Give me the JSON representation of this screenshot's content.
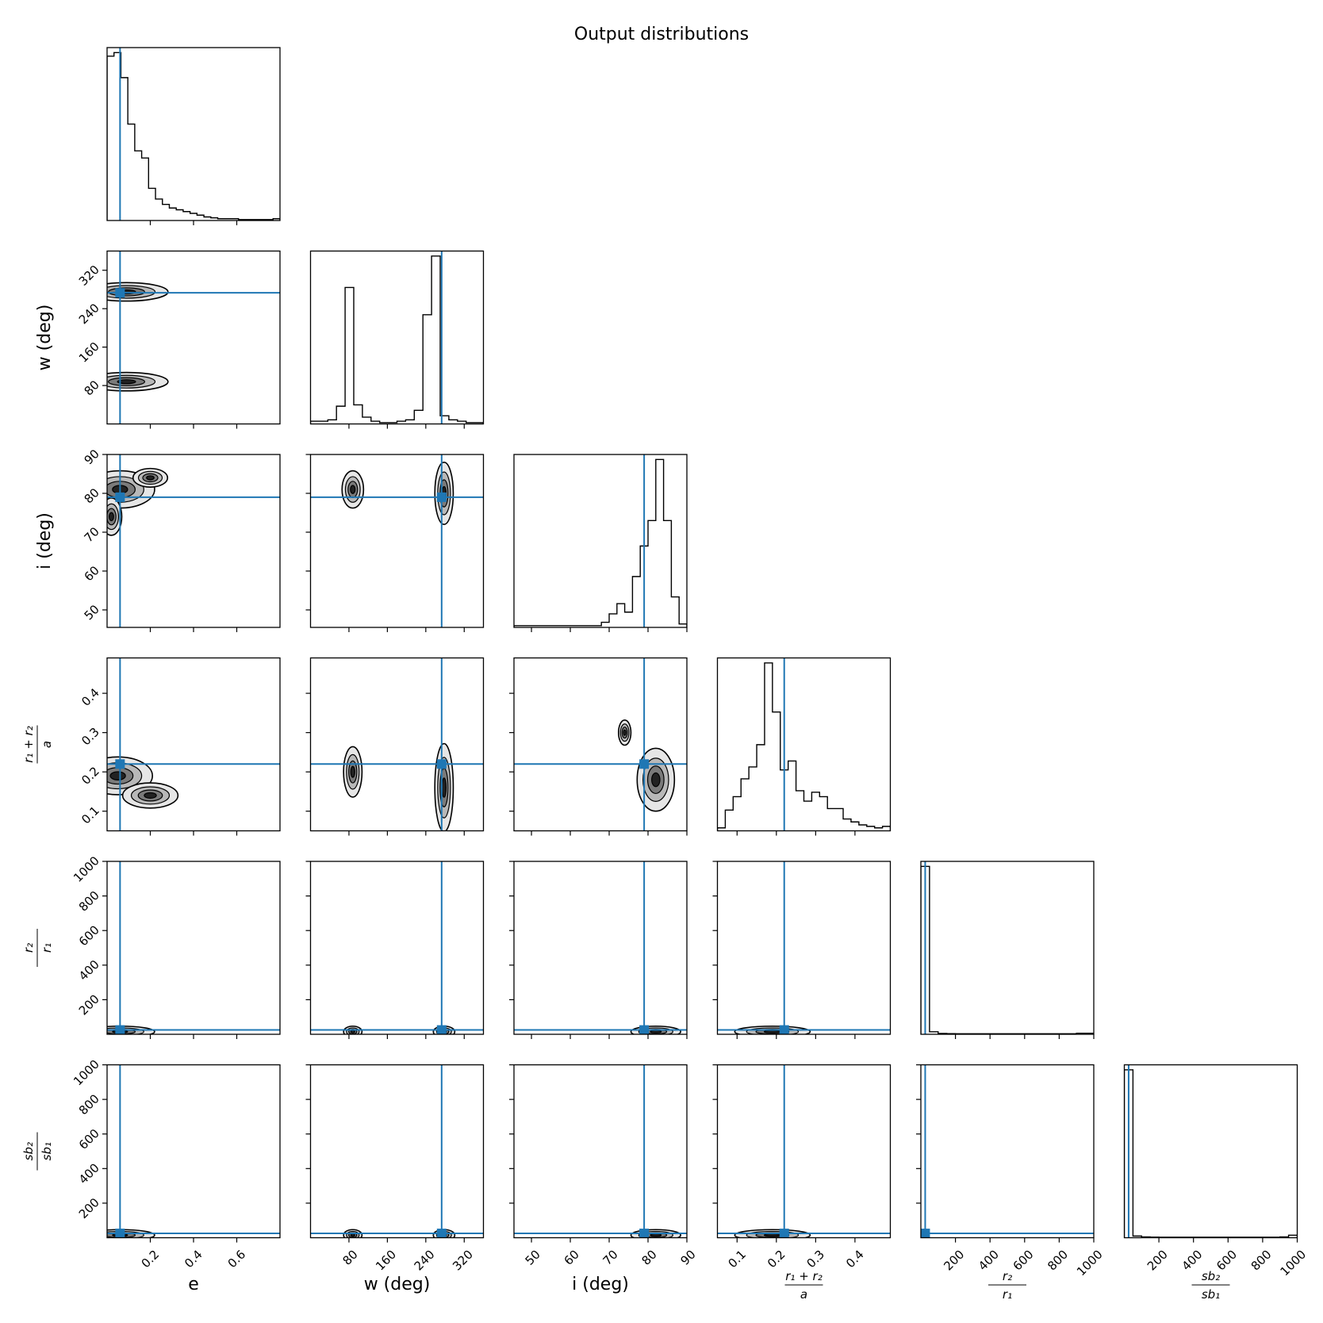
{
  "chart_data": {
    "type": "corner",
    "title": "Output distributions",
    "truth_color": "#1f77b4",
    "parameters": [
      {
        "id": "e",
        "label": "e",
        "label_kind": "text",
        "range": [
          0.0,
          0.8
        ],
        "ticks": [
          0.2,
          0.4,
          0.6
        ],
        "tick_labels": [
          "0.2",
          "0.4",
          "0.6"
        ],
        "truth": 0.06
      },
      {
        "id": "w",
        "label": "w (deg)",
        "label_kind": "text",
        "range": [
          0,
          360
        ],
        "ticks": [
          80,
          160,
          240,
          320
        ],
        "tick_labels": [
          "80",
          "160",
          "240",
          "320"
        ],
        "truth": 273
      },
      {
        "id": "i",
        "label": "i (deg)",
        "label_kind": "text",
        "range": [
          45.5,
          90
        ],
        "ticks": [
          50,
          60,
          70,
          80,
          90
        ],
        "tick_labels": [
          "50",
          "60",
          "70",
          "80",
          "90"
        ],
        "truth": 79
      },
      {
        "id": "rsum",
        "label_kind": "fraction",
        "label_num": "r₁ + r₂",
        "label_den": "a",
        "range": [
          0.05,
          0.49
        ],
        "ticks": [
          0.1,
          0.2,
          0.3,
          0.4
        ],
        "tick_labels": [
          "0.1",
          "0.2",
          "0.3",
          "0.4"
        ],
        "truth": 0.22
      },
      {
        "id": "rratio",
        "label_kind": "fraction",
        "label_num": "r₂",
        "label_den": "r₁",
        "range": [
          0,
          1000
        ],
        "ticks": [
          200,
          400,
          600,
          800,
          1000
        ],
        "tick_labels": [
          "200",
          "400",
          "600",
          "800",
          "1000"
        ],
        "truth": 25
      },
      {
        "id": "sbratio",
        "label_kind": "fraction",
        "label_num": "sb₂",
        "label_den": "sb₁",
        "range": [
          0,
          1000
        ],
        "ticks": [
          200,
          400,
          600,
          800,
          1000
        ],
        "tick_labels": [
          "200",
          "400",
          "600",
          "800",
          "1000"
        ],
        "truth": 25
      }
    ],
    "histograms": [
      {
        "param": "e",
        "bins": [
          0.0,
          0.032,
          0.064,
          0.096,
          0.128,
          0.16,
          0.192,
          0.224,
          0.256,
          0.288,
          0.32,
          0.352,
          0.384,
          0.416,
          0.448,
          0.48,
          0.512,
          0.544,
          0.576,
          0.608,
          0.64,
          0.672,
          0.704,
          0.736,
          0.768,
          0.8
        ],
        "counts": [
          0.92,
          0.94,
          0.8,
          0.54,
          0.39,
          0.35,
          0.18,
          0.12,
          0.09,
          0.07,
          0.06,
          0.05,
          0.04,
          0.03,
          0.02,
          0.015,
          0.01,
          0.01,
          0.01,
          0.005,
          0.005,
          0.005,
          0.005,
          0.005,
          0.01
        ]
      },
      {
        "param": "w",
        "bins": [
          0,
          36,
          54,
          72,
          90,
          108,
          126,
          144,
          162,
          180,
          198,
          216,
          234,
          252,
          270,
          288,
          306,
          324,
          360
        ],
        "counts": [
          0.02,
          0.03,
          0.13,
          1.0,
          0.14,
          0.05,
          0.02,
          0.01,
          0.01,
          0.02,
          0.03,
          0.1,
          0.8,
          1.23,
          0.06,
          0.03,
          0.02,
          0.01
        ]
      },
      {
        "param": "i",
        "bins": [
          45.5,
          68,
          70,
          72,
          74,
          76,
          78,
          80,
          82,
          84,
          86,
          88,
          90
        ],
        "counts": [
          0.01,
          0.03,
          0.08,
          0.14,
          0.09,
          0.3,
          0.48,
          0.63,
          0.99,
          0.63,
          0.18,
          0.02
        ]
      },
      {
        "param": "rsum",
        "bins": [
          0.05,
          0.07,
          0.09,
          0.11,
          0.13,
          0.15,
          0.17,
          0.19,
          0.21,
          0.23,
          0.25,
          0.27,
          0.29,
          0.31,
          0.33,
          0.35,
          0.37,
          0.39,
          0.41,
          0.43,
          0.45,
          0.47,
          0.49
        ],
        "counts": [
          0.02,
          0.14,
          0.23,
          0.35,
          0.43,
          0.58,
          1.13,
          0.8,
          0.41,
          0.47,
          0.27,
          0.2,
          0.26,
          0.23,
          0.15,
          0.15,
          0.08,
          0.06,
          0.04,
          0.03,
          0.02,
          0.03
        ]
      },
      {
        "param": "rratio",
        "bins": [
          0,
          50,
          100,
          150,
          200,
          300,
          400,
          500,
          600,
          700,
          800,
          900,
          1000
        ],
        "counts": [
          1.0,
          0.015,
          0.005,
          0.004,
          0.003,
          0.003,
          0.003,
          0.003,
          0.003,
          0.003,
          0.003,
          0.006
        ]
      },
      {
        "param": "sbratio",
        "bins": [
          0,
          50,
          100,
          150,
          200,
          300,
          400,
          500,
          600,
          700,
          800,
          900,
          950,
          1000
        ],
        "counts": [
          1.0,
          0.01,
          0.005,
          0.004,
          0.003,
          0.003,
          0.003,
          0.003,
          0.003,
          0.003,
          0.003,
          0.005,
          0.015
        ]
      }
    ],
    "density_blobs": [
      {
        "x": "e",
        "y": "w",
        "cx": 0.09,
        "cy": 275,
        "sx": 0.12,
        "sy": 12
      },
      {
        "x": "e",
        "y": "w",
        "cx": 0.09,
        "cy": 88,
        "sx": 0.12,
        "sy": 12
      },
      {
        "x": "e",
        "y": "i",
        "cx": 0.06,
        "cy": 81,
        "sx": 0.1,
        "sy": 3
      },
      {
        "x": "e",
        "y": "i",
        "cx": 0.2,
        "cy": 84,
        "sx": 0.05,
        "sy": 1.5
      },
      {
        "x": "e",
        "y": "i",
        "cx": 0.02,
        "cy": 74,
        "sx": 0.03,
        "sy": 3
      },
      {
        "x": "w",
        "y": "i",
        "cx": 88,
        "cy": 81,
        "sx": 14,
        "sy": 3
      },
      {
        "x": "w",
        "y": "i",
        "cx": 278,
        "cy": 80,
        "sx": 12,
        "sy": 5
      },
      {
        "x": "e",
        "y": "rsum",
        "cx": 0.05,
        "cy": 0.19,
        "sx": 0.1,
        "sy": 0.03
      },
      {
        "x": "e",
        "y": "rsum",
        "cx": 0.2,
        "cy": 0.14,
        "sx": 0.08,
        "sy": 0.02
      },
      {
        "x": "w",
        "y": "rsum",
        "cx": 88,
        "cy": 0.2,
        "sx": 12,
        "sy": 0.04
      },
      {
        "x": "w",
        "y": "rsum",
        "cx": 278,
        "cy": 0.16,
        "sx": 12,
        "sy": 0.07
      },
      {
        "x": "i",
        "y": "rsum",
        "cx": 82,
        "cy": 0.18,
        "sx": 3,
        "sy": 0.05
      },
      {
        "x": "i",
        "y": "rsum",
        "cx": 74,
        "cy": 0.3,
        "sx": 1,
        "sy": 0.02
      },
      {
        "x": "e",
        "y": "rratio",
        "cx": 0.06,
        "cy": 15,
        "sx": 0.1,
        "sy": 20
      },
      {
        "x": "w",
        "y": "rratio",
        "cx": 88,
        "cy": 15,
        "sx": 12,
        "sy": 20
      },
      {
        "x": "w",
        "y": "rratio",
        "cx": 278,
        "cy": 15,
        "sx": 14,
        "sy": 20
      },
      {
        "x": "i",
        "y": "rratio",
        "cx": 82,
        "cy": 15,
        "sx": 4,
        "sy": 20
      },
      {
        "x": "rsum",
        "y": "rratio",
        "cx": 0.19,
        "cy": 15,
        "sx": 0.06,
        "sy": 20
      },
      {
        "x": "rratio",
        "y": "sbratio",
        "cx": 15,
        "cy": 15,
        "sx": 15,
        "sy": 20
      },
      {
        "x": "e",
        "y": "sbratio",
        "cx": 0.06,
        "cy": 15,
        "sx": 0.1,
        "sy": 20
      },
      {
        "x": "w",
        "y": "sbratio",
        "cx": 88,
        "cy": 15,
        "sx": 12,
        "sy": 20
      },
      {
        "x": "w",
        "y": "sbratio",
        "cx": 278,
        "cy": 15,
        "sx": 14,
        "sy": 20
      },
      {
        "x": "i",
        "y": "sbratio",
        "cx": 82,
        "cy": 15,
        "sx": 4,
        "sy": 20
      },
      {
        "x": "rsum",
        "y": "sbratio",
        "cx": 0.19,
        "cy": 15,
        "sx": 0.06,
        "sy": 20
      }
    ]
  }
}
